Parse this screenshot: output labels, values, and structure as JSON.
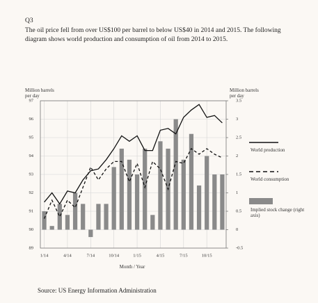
{
  "question_label": "Q3",
  "question_text": "The oil price fell from over US$100 per barrel to below US$40 in 2014 and 2015. The following diagram shows world production and consumption of oil from 2014 to 2015.",
  "source": "Source: US Energy Information Administration",
  "chart_data": {
    "type": "combo",
    "y_label": "Million barrels per day",
    "y2_label": "Million barrels per day",
    "x_label": "Month / Year",
    "categories": [
      "1/14",
      null,
      null,
      "4/14",
      null,
      null,
      "7/14",
      null,
      null,
      "10/14",
      null,
      null,
      "1/15",
      null,
      null,
      "4/15",
      null,
      null,
      "7/15",
      null,
      null,
      "10/15",
      null,
      null
    ],
    "ylim": [
      89,
      97
    ],
    "yticks": [
      89,
      90,
      91,
      92,
      93,
      94,
      95,
      96,
      97
    ],
    "y2lim": [
      -0.5,
      3.5
    ],
    "y2ticks": [
      -0.5,
      0,
      0.5,
      1,
      1.5,
      2,
      2.5,
      3,
      3.5
    ],
    "grid": true,
    "series": [
      {
        "name": "World production",
        "type": "line",
        "dash": false,
        "color": "#111111",
        "values": [
          91.5,
          92.0,
          91.4,
          92.1,
          92.0,
          92.7,
          93.2,
          93.3,
          93.8,
          94.4,
          95.1,
          94.8,
          95.1,
          94.3,
          94.3,
          95.4,
          95.5,
          95.2,
          96.1,
          96.5,
          96.8,
          96.1,
          96.2,
          95.8
        ]
      },
      {
        "name": "World consumption",
        "type": "line",
        "dash": true,
        "color": "#111111",
        "values": [
          90.6,
          91.6,
          90.7,
          91.6,
          91.2,
          92.3,
          93.4,
          92.7,
          93.3,
          93.7,
          93.7,
          92.6,
          93.6,
          92.3,
          93.7,
          93.3,
          92.2,
          93.7,
          93.6,
          94.4,
          94.1,
          94.4,
          94.1,
          93.9
        ]
      },
      {
        "name": "Implied stock change (right axis)",
        "type": "bar",
        "axis": "y2",
        "color": "#8a8a8a",
        "values": [
          0.5,
          0.1,
          0.7,
          0.4,
          1.0,
          0.7,
          -0.2,
          0.7,
          0.7,
          1.7,
          2.2,
          1.9,
          1.5,
          2.2,
          0.4,
          2.4,
          2.2,
          3.0,
          1.9,
          2.6,
          1.2,
          2.0,
          1.5,
          1.5
        ]
      }
    ]
  }
}
